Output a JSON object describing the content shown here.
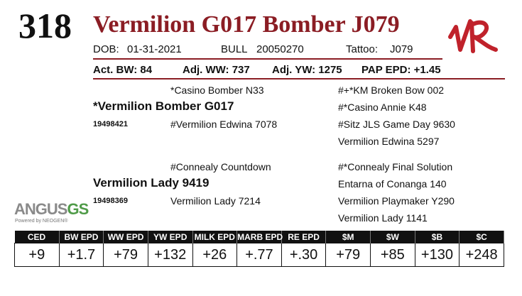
{
  "lot_number": "318",
  "animal_name": "Vermilion G017 Bomber J079",
  "info": {
    "dob_label": "DOB:",
    "dob": "01-31-2021",
    "sex": "BULL",
    "registration": "20050270",
    "tattoo_label": "Tattoo:",
    "tattoo": "J079"
  },
  "performance": {
    "act_bw": "Act. BW: 84",
    "adj_ww": "Adj. WW: 737",
    "adj_yw": "Adj. YW: 1275",
    "pap_epd": "PAP EPD: +1.45"
  },
  "pedigree": {
    "sire": "*Vermilion Bomber G017",
    "sire_reg": "19498421",
    "sire_sire": "*Casino Bomber N33",
    "sire_dam": "#Vermilion Edwina 7078",
    "sire_sire_sire": "#+*KM Broken Bow 002",
    "sire_sire_dam": "#*Casino Annie K48",
    "sire_dam_sire": "#Sitz JLS Game Day 9630",
    "sire_dam_dam": "Vermilion Edwina 5297",
    "dam": "Vermilion Lady 9419",
    "dam_reg": "19498369",
    "dam_sire": "#Connealy Countdown",
    "dam_dam": "Vermilion Lady 7214",
    "dam_sire_sire": "#*Connealy Final Solution",
    "dam_sire_dam": "Entarna of Conanga 140",
    "dam_dam_sire": "Vermilion Playmaker Y290",
    "dam_dam_dam": "Vermilion Lady 1141"
  },
  "logo": {
    "brand_letters": "VR",
    "angus_word": "ANGUS",
    "angus_gs": "GS",
    "angus_tagline": "Powered by NEOGEN®",
    "brand_color": "#8b1d24",
    "angus_green": "#4f9b48"
  },
  "epd": {
    "headers": [
      "CED",
      "BW EPD",
      "WW EPD",
      "YW EPD",
      "MILK EPD",
      "MARB EPD",
      "RE EPD",
      "$M",
      "$W",
      "$B",
      "$C"
    ],
    "values": [
      "+9",
      "+1.7",
      "+79",
      "+132",
      "+26",
      "+.77",
      "+.30",
      "+79",
      "+85",
      "+130",
      "+248"
    ]
  }
}
